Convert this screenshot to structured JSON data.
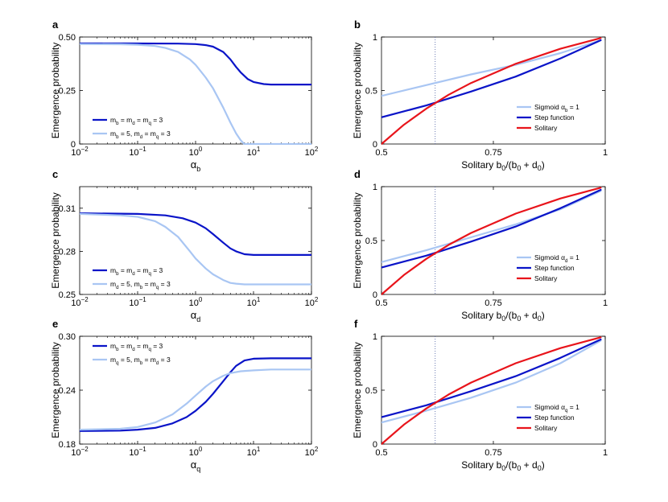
{
  "colors": {
    "dark_blue": "#0a14c8",
    "light_blue": "#a9c6f3",
    "red": "#e8141b",
    "axis": "#000000",
    "dotted": "#5a6aa8"
  },
  "chart_data": [
    {
      "id": "a",
      "panel_label": "a",
      "type": "line",
      "xscale": "log",
      "xlim": [
        0.01,
        100
      ],
      "xticks": [
        {
          "v": 0.01,
          "b": "10",
          "e": "−2"
        },
        {
          "v": 0.1,
          "b": "10",
          "e": "−1"
        },
        {
          "v": 1,
          "b": "10",
          "e": "0"
        },
        {
          "v": 10,
          "b": "10",
          "e": "1"
        },
        {
          "v": 100,
          "b": "10",
          "e": "2"
        }
      ],
      "ylim": [
        0,
        0.5
      ],
      "yticks": [
        {
          "v": 0,
          "t": "0"
        },
        {
          "v": 0.25,
          "t": "0.25"
        },
        {
          "v": 0.5,
          "t": "0.50"
        }
      ],
      "ylabel": "Emergence probability",
      "xlabel": {
        "main": "α",
        "sub": "b",
        "tail": ""
      },
      "series": [
        {
          "color": "dark_blue",
          "legend": {
            "parts": [
              {
                "t": "m",
                "s": "b"
              },
              {
                "t": " = m",
                "s": "d"
              },
              {
                "t": " = m",
                "s": "q"
              },
              {
                "t": " = 3"
              }
            ]
          },
          "x": [
            0.01,
            0.1,
            0.5,
            1,
            1.5,
            2,
            3,
            4,
            5,
            6,
            8,
            10,
            15,
            20,
            50,
            100
          ],
          "y": [
            0.47,
            0.47,
            0.469,
            0.467,
            0.462,
            0.455,
            0.43,
            0.395,
            0.36,
            0.335,
            0.303,
            0.29,
            0.28,
            0.278,
            0.278,
            0.278
          ]
        },
        {
          "color": "light_blue",
          "legend": {
            "parts": [
              {
                "t": "m",
                "s": "b"
              },
              {
                "t": " = 5, m",
                "s": "d"
              },
              {
                "t": " = m",
                "s": "q"
              },
              {
                "t": " = 3"
              }
            ]
          },
          "x": [
            0.01,
            0.05,
            0.1,
            0.2,
            0.3,
            0.5,
            0.8,
            1,
            1.5,
            2,
            3,
            4,
            5,
            6,
            6.9,
            7.2,
            10,
            100
          ],
          "y": [
            0.467,
            0.466,
            0.464,
            0.458,
            0.449,
            0.43,
            0.395,
            0.37,
            0.31,
            0.26,
            0.17,
            0.1,
            0.05,
            0.018,
            0.0,
            0.0,
            0.0,
            0.0
          ]
        }
      ],
      "legend_pos": "lower-left"
    },
    {
      "id": "b",
      "panel_label": "b",
      "type": "line",
      "xscale": "linear",
      "xlim": [
        0.5,
        1
      ],
      "xticks": [
        {
          "v": 0.5,
          "t": "0.5"
        },
        {
          "v": 0.75,
          "t": "0.75"
        },
        {
          "v": 1,
          "t": "1"
        }
      ],
      "ylim": [
        0,
        1
      ],
      "yticks": [
        {
          "v": 0,
          "t": "0"
        },
        {
          "v": 0.5,
          "t": "0.5"
        },
        {
          "v": 1,
          "t": "1"
        }
      ],
      "ylabel": "Emergence probability",
      "xlabel": {
        "solitary": true
      },
      "vline": 0.62,
      "series": [
        {
          "color": "light_blue",
          "legend": {
            "parts": [
              {
                "t": "Sigmoid α",
                "s": "b"
              },
              {
                "t": " = 1"
              }
            ]
          },
          "x": [
            0.5,
            0.6,
            0.7,
            0.8,
            0.9,
            0.99
          ],
          "y": [
            0.45,
            0.55,
            0.65,
            0.74,
            0.85,
            0.97
          ]
        },
        {
          "color": "dark_blue",
          "legend": {
            "parts": [
              {
                "t": "Step function"
              }
            ]
          },
          "x": [
            0.5,
            0.6,
            0.7,
            0.8,
            0.9,
            0.99
          ],
          "y": [
            0.25,
            0.36,
            0.49,
            0.63,
            0.8,
            0.97
          ]
        },
        {
          "color": "red",
          "legend": {
            "parts": [
              {
                "t": "Solitary"
              }
            ]
          },
          "x": [
            0.5,
            0.55,
            0.6,
            0.65,
            0.7,
            0.8,
            0.9,
            0.99
          ],
          "y": [
            0.0,
            0.18,
            0.33,
            0.46,
            0.57,
            0.75,
            0.89,
            0.99
          ]
        }
      ],
      "legend_pos": "lower-right"
    },
    {
      "id": "c",
      "panel_label": "c",
      "type": "line",
      "xscale": "log",
      "xlim": [
        0.01,
        100
      ],
      "xticks": [
        {
          "v": 0.01,
          "b": "10",
          "e": "−2"
        },
        {
          "v": 0.1,
          "b": "10",
          "e": "−1"
        },
        {
          "v": 1,
          "b": "10",
          "e": "0"
        },
        {
          "v": 10,
          "b": "10",
          "e": "1"
        },
        {
          "v": 100,
          "b": "10",
          "e": "2"
        }
      ],
      "ylim": [
        0.25,
        0.325
      ],
      "yticks": [
        {
          "v": 0.25,
          "t": "0.25"
        },
        {
          "v": 0.28,
          "t": "0.28"
        },
        {
          "v": 0.31,
          "t": "0.31"
        }
      ],
      "ylabel": "Emergence probability",
      "xlabel": {
        "main": "α",
        "sub": "d",
        "tail": ""
      },
      "series": [
        {
          "color": "dark_blue",
          "legend": {
            "parts": [
              {
                "t": "m",
                "s": "b"
              },
              {
                "t": " = m",
                "s": "d"
              },
              {
                "t": " = m",
                "s": "q"
              },
              {
                "t": " = 3"
              }
            ]
          },
          "x": [
            0.01,
            0.1,
            0.3,
            0.6,
            1,
            1.5,
            2,
            3,
            4,
            5,
            7,
            10,
            20,
            100
          ],
          "y": [
            0.3065,
            0.306,
            0.305,
            0.303,
            0.3,
            0.296,
            0.292,
            0.286,
            0.282,
            0.28,
            0.278,
            0.2775,
            0.2775,
            0.2775
          ]
        },
        {
          "color": "light_blue",
          "legend": {
            "parts": [
              {
                "t": "m",
                "s": "d"
              },
              {
                "t": " = 5, m",
                "s": "b"
              },
              {
                "t": " = m",
                "s": "q"
              },
              {
                "t": " = 3"
              }
            ]
          },
          "x": [
            0.01,
            0.05,
            0.1,
            0.2,
            0.3,
            0.5,
            0.8,
            1,
            1.5,
            2,
            3,
            4,
            5,
            7,
            10,
            100
          ],
          "y": [
            0.306,
            0.305,
            0.304,
            0.301,
            0.297,
            0.29,
            0.28,
            0.275,
            0.268,
            0.264,
            0.26,
            0.258,
            0.2575,
            0.257,
            0.257,
            0.257
          ]
        }
      ],
      "legend_pos": "lower-left"
    },
    {
      "id": "d",
      "panel_label": "d",
      "type": "line",
      "xscale": "linear",
      "xlim": [
        0.5,
        1
      ],
      "xticks": [
        {
          "v": 0.5,
          "t": "0.5"
        },
        {
          "v": 0.75,
          "t": "0.75"
        },
        {
          "v": 1,
          "t": "1"
        }
      ],
      "ylim": [
        0,
        1
      ],
      "yticks": [
        {
          "v": 0,
          "t": "0"
        },
        {
          "v": 0.5,
          "t": "0.5"
        },
        {
          "v": 1,
          "t": "1"
        }
      ],
      "ylabel": "Emergence probability",
      "xlabel": {
        "solitary": true
      },
      "vline": 0.62,
      "series": [
        {
          "color": "light_blue",
          "legend": {
            "parts": [
              {
                "t": "Sigmoid α",
                "s": "d"
              },
              {
                "t": " = 1"
              }
            ]
          },
          "x": [
            0.5,
            0.6,
            0.7,
            0.8,
            0.9,
            0.99
          ],
          "y": [
            0.3,
            0.41,
            0.53,
            0.65,
            0.79,
            0.96
          ]
        },
        {
          "color": "dark_blue",
          "legend": {
            "parts": [
              {
                "t": "Step function"
              }
            ]
          },
          "x": [
            0.5,
            0.6,
            0.7,
            0.8,
            0.9,
            0.99
          ],
          "y": [
            0.25,
            0.36,
            0.49,
            0.63,
            0.8,
            0.97
          ]
        },
        {
          "color": "red",
          "legend": {
            "parts": [
              {
                "t": "Solitary"
              }
            ]
          },
          "x": [
            0.5,
            0.55,
            0.6,
            0.65,
            0.7,
            0.8,
            0.9,
            0.99
          ],
          "y": [
            0.0,
            0.18,
            0.33,
            0.46,
            0.57,
            0.75,
            0.89,
            0.99
          ]
        }
      ],
      "legend_pos": "lower-right"
    },
    {
      "id": "e",
      "panel_label": "e",
      "type": "line",
      "xscale": "log",
      "xlim": [
        0.01,
        100
      ],
      "xticks": [
        {
          "v": 0.01,
          "b": "10",
          "e": "−2"
        },
        {
          "v": 0.1,
          "b": "10",
          "e": "−1"
        },
        {
          "v": 1,
          "b": "10",
          "e": "0"
        },
        {
          "v": 10,
          "b": "10",
          "e": "1"
        },
        {
          "v": 100,
          "b": "10",
          "e": "2"
        }
      ],
      "ylim": [
        0.18,
        0.3
      ],
      "yticks": [
        {
          "v": 0.18,
          "t": "0.18"
        },
        {
          "v": 0.24,
          "t": "0.24"
        },
        {
          "v": 0.3,
          "t": "0.30"
        }
      ],
      "ylabel": "Emergence probability",
      "xlabel": {
        "main": "α",
        "sub": "q",
        "tail": ""
      },
      "series": [
        {
          "color": "dark_blue",
          "legend": {
            "parts": [
              {
                "t": "m",
                "s": "b"
              },
              {
                "t": " = m",
                "s": "d"
              },
              {
                "t": " = m",
                "s": "q"
              },
              {
                "t": " = 3"
              }
            ]
          },
          "x": [
            0.01,
            0.05,
            0.1,
            0.2,
            0.4,
            0.7,
            1,
            1.5,
            2,
            3,
            4,
            5,
            7,
            10,
            20,
            100
          ],
          "y": [
            0.1945,
            0.195,
            0.196,
            0.198,
            0.203,
            0.21,
            0.217,
            0.227,
            0.236,
            0.25,
            0.26,
            0.267,
            0.273,
            0.275,
            0.2755,
            0.2755
          ]
        },
        {
          "color": "light_blue",
          "legend": {
            "parts": [
              {
                "t": "m",
                "s": "q"
              },
              {
                "t": " = 5, m",
                "s": "b"
              },
              {
                "t": " = m",
                "s": "d"
              },
              {
                "t": " = 3"
              }
            ]
          },
          "x": [
            0.01,
            0.05,
            0.1,
            0.2,
            0.4,
            0.7,
            1,
            1.5,
            2,
            3,
            4,
            6,
            10,
            20,
            100
          ],
          "y": [
            0.196,
            0.197,
            0.199,
            0.204,
            0.213,
            0.225,
            0.234,
            0.244,
            0.25,
            0.256,
            0.259,
            0.261,
            0.262,
            0.263,
            0.263
          ]
        }
      ],
      "legend_pos": "upper-left"
    },
    {
      "id": "f",
      "panel_label": "f",
      "type": "line",
      "xscale": "linear",
      "xlim": [
        0.5,
        1
      ],
      "xticks": [
        {
          "v": 0.5,
          "t": "0.5"
        },
        {
          "v": 0.75,
          "t": "0.75"
        },
        {
          "v": 1,
          "t": "1"
        }
      ],
      "ylim": [
        0,
        1
      ],
      "yticks": [
        {
          "v": 0,
          "t": "0"
        },
        {
          "v": 0.5,
          "t": "0.5"
        },
        {
          "v": 1,
          "t": "1"
        }
      ],
      "ylabel": "Emergence probability",
      "xlabel": {
        "solitary": true
      },
      "vline": 0.62,
      "series": [
        {
          "color": "light_blue",
          "legend": {
            "parts": [
              {
                "t": "Sigmoid α",
                "s": "q"
              },
              {
                "t": " = 1"
              }
            ]
          },
          "x": [
            0.5,
            0.6,
            0.7,
            0.8,
            0.9,
            0.99
          ],
          "y": [
            0.2,
            0.31,
            0.43,
            0.57,
            0.75,
            0.96
          ]
        },
        {
          "color": "dark_blue",
          "legend": {
            "parts": [
              {
                "t": "Step function"
              }
            ]
          },
          "x": [
            0.5,
            0.6,
            0.7,
            0.8,
            0.9,
            0.99
          ],
          "y": [
            0.25,
            0.36,
            0.49,
            0.63,
            0.8,
            0.97
          ]
        },
        {
          "color": "red",
          "legend": {
            "parts": [
              {
                "t": "Solitary"
              }
            ]
          },
          "x": [
            0.5,
            0.55,
            0.6,
            0.65,
            0.7,
            0.8,
            0.9,
            0.99
          ],
          "y": [
            0.0,
            0.18,
            0.33,
            0.46,
            0.57,
            0.75,
            0.89,
            0.99
          ]
        }
      ],
      "legend_pos": "lower-right"
    }
  ]
}
